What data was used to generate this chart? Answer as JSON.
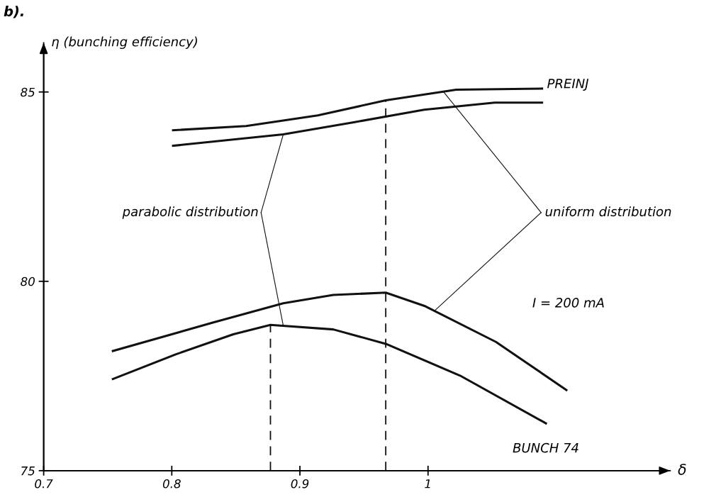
{
  "chart_data": {
    "type": "line",
    "title": "b).",
    "ylabel": "η (bunching efficiency)",
    "xlabel": "δ",
    "xlim": [
      0.7,
      1.189
    ],
    "ylim": [
      75,
      86.3
    ],
    "xticks": [
      0.7,
      0.8,
      0.9,
      1
    ],
    "yticks": [
      75,
      80,
      85
    ],
    "grid": false,
    "legend": false,
    "marker": "none",
    "line_style": "solid",
    "series": [
      {
        "name": "PREINJ",
        "color": "#111111",
        "x": [
          0.801,
          0.858,
          0.914,
          0.967,
          1.022,
          1.089
        ],
        "values": [
          83.99,
          84.1,
          84.38,
          84.78,
          85.06,
          85.09
        ]
      },
      {
        "color": "#111111",
        "x": [
          0.801,
          0.887,
          0.942,
          0.997,
          1.052,
          1.089
        ],
        "values": [
          83.58,
          83.88,
          84.2,
          84.53,
          84.72,
          84.72
        ]
      },
      {
        "color": "#111111",
        "x": [
          0.754,
          0.832,
          0.887,
          0.926,
          0.967,
          0.998,
          1.053,
          1.108
        ],
        "values": [
          78.16,
          78.91,
          79.42,
          79.64,
          79.7,
          79.34,
          78.4,
          77.13
        ]
      },
      {
        "name": "BUNCH 74",
        "color": "#111111",
        "x": [
          0.754,
          0.803,
          0.848,
          0.877,
          0.926,
          0.967,
          1.025,
          1.092
        ],
        "values": [
          77.42,
          78.07,
          78.6,
          78.85,
          78.73,
          78.35,
          77.51,
          76.25
        ]
      }
    ],
    "ref_lines": [
      {
        "axis": "x",
        "value": 0.877,
        "line_style": "dashed",
        "color": "#111111"
      },
      {
        "axis": "x",
        "value": 0.967,
        "line_style": "dashed",
        "color": "#111111"
      }
    ],
    "annotations": [
      {
        "text": "parabolic distribution",
        "x": 0.887,
        "y": 78.83
      },
      {
        "text": "uniform distribution",
        "x": 1.005,
        "y": 79.22
      },
      "I = 200 mA"
    ]
  }
}
